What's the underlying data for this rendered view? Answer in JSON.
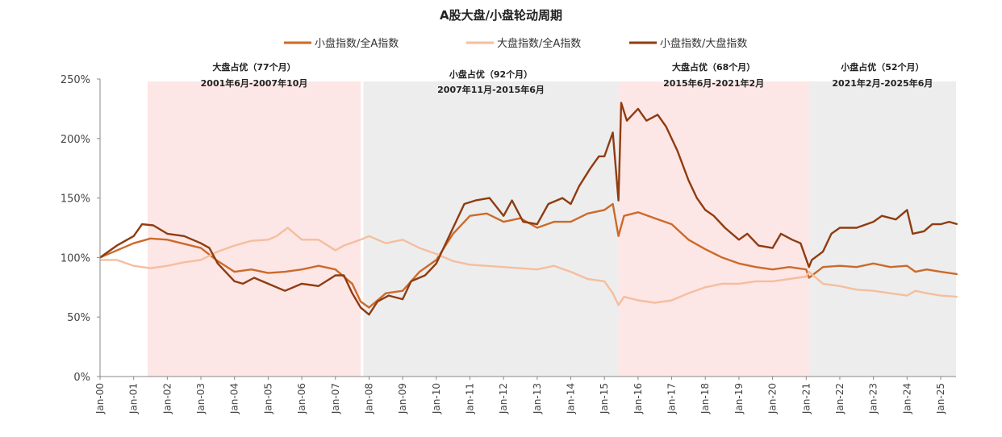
{
  "chart_data": {
    "type": "line",
    "title": "A股大盘/小盘轮动周期",
    "legend_position": "top",
    "grid": false,
    "ylim": [
      0,
      250
    ],
    "yticks": [
      "0%",
      "50%",
      "100%",
      "150%",
      "200%",
      "250%"
    ],
    "ytick_values": [
      0,
      50,
      100,
      150,
      200,
      250
    ],
    "xticks": [
      "Jan-00",
      "Jan-01",
      "Jan-02",
      "Jan-03",
      "Jan-04",
      "Jan-05",
      "Jan-06",
      "Jan-07",
      "Jan-08",
      "Jan-09",
      "Jan-10",
      "Jan-11",
      "Jan-12",
      "Jan-13",
      "Jan-14",
      "Jan-15",
      "Jan-16",
      "Jan-17",
      "Jan-18",
      "Jan-19",
      "Jan-20",
      "Jan-21",
      "Jan-22",
      "Jan-23",
      "Jan-24",
      "Jan-25"
    ],
    "xlim": [
      "2000-01",
      "2025-07"
    ],
    "regions": [
      {
        "start": "2001-06",
        "end": "2007-10",
        "label1": "大盘占优（77个月）",
        "label2": "2001年6月-2007年10月",
        "color": "#FDE6E6"
      },
      {
        "start": "2007-11",
        "end": "2015-06",
        "label1": "小盘占优（92个月）",
        "label2": "2007年11月-2015年6月",
        "color": "#EDEDED"
      },
      {
        "start": "2015-06",
        "end": "2021-02",
        "label1": "大盘占优（68个月）",
        "label2": "2015年6月-2021年2月",
        "color": "#FDE6E6"
      },
      {
        "start": "2021-02",
        "end": "2025-07",
        "label1": "小盘占优（52个月）",
        "label2": "2021年2月-2025年6月",
        "color": "#EDEDED"
      }
    ],
    "series": [
      {
        "name": "小盘指数/全A指数",
        "color": "#CC6A2A",
        "points": [
          [
            "2000-01",
            100
          ],
          [
            "2001-01",
            112
          ],
          [
            "2001-07",
            116
          ],
          [
            "2002-01",
            115
          ],
          [
            "2003-01",
            108
          ],
          [
            "2003-07",
            97
          ],
          [
            "2004-01",
            88
          ],
          [
            "2004-07",
            90
          ],
          [
            "2005-01",
            87
          ],
          [
            "2005-07",
            88
          ],
          [
            "2006-01",
            90
          ],
          [
            "2006-07",
            93
          ],
          [
            "2007-01",
            90
          ],
          [
            "2007-07",
            78
          ],
          [
            "2007-10",
            63
          ],
          [
            "2008-01",
            58
          ],
          [
            "2008-07",
            70
          ],
          [
            "2009-01",
            72
          ],
          [
            "2009-07",
            88
          ],
          [
            "2010-01",
            98
          ],
          [
            "2010-07",
            120
          ],
          [
            "2011-01",
            135
          ],
          [
            "2011-07",
            137
          ],
          [
            "2012-01",
            130
          ],
          [
            "2012-07",
            133
          ],
          [
            "2013-01",
            125
          ],
          [
            "2013-07",
            130
          ],
          [
            "2014-01",
            130
          ],
          [
            "2014-07",
            137
          ],
          [
            "2015-01",
            140
          ],
          [
            "2015-04",
            145
          ],
          [
            "2015-06",
            118
          ],
          [
            "2015-08",
            135
          ],
          [
            "2016-01",
            138
          ],
          [
            "2016-07",
            133
          ],
          [
            "2017-01",
            128
          ],
          [
            "2017-07",
            115
          ],
          [
            "2018-01",
            107
          ],
          [
            "2018-07",
            100
          ],
          [
            "2019-01",
            95
          ],
          [
            "2019-07",
            92
          ],
          [
            "2020-01",
            90
          ],
          [
            "2020-07",
            92
          ],
          [
            "2021-01",
            90
          ],
          [
            "2021-02",
            83
          ],
          [
            "2021-07",
            92
          ],
          [
            "2022-01",
            93
          ],
          [
            "2022-07",
            92
          ],
          [
            "2023-01",
            95
          ],
          [
            "2023-07",
            92
          ],
          [
            "2024-01",
            93
          ],
          [
            "2024-04",
            88
          ],
          [
            "2024-08",
            90
          ],
          [
            "2025-01",
            88
          ],
          [
            "2025-07",
            86
          ]
        ]
      },
      {
        "name": "大盘指数/全A指数",
        "color": "#F5BE9E",
        "points": [
          [
            "2000-01",
            98
          ],
          [
            "2000-07",
            98
          ],
          [
            "2001-01",
            93
          ],
          [
            "2001-07",
            91
          ],
          [
            "2002-01",
            93
          ],
          [
            "2002-07",
            96
          ],
          [
            "2003-01",
            98
          ],
          [
            "2003-07",
            105
          ],
          [
            "2004-01",
            110
          ],
          [
            "2004-07",
            114
          ],
          [
            "2005-01",
            115
          ],
          [
            "2005-04",
            118
          ],
          [
            "2005-08",
            125
          ],
          [
            "2006-01",
            115
          ],
          [
            "2006-07",
            115
          ],
          [
            "2007-01",
            106
          ],
          [
            "2007-04",
            110
          ],
          [
            "2007-10",
            115
          ],
          [
            "2008-01",
            118
          ],
          [
            "2008-07",
            112
          ],
          [
            "2009-01",
            115
          ],
          [
            "2009-07",
            108
          ],
          [
            "2010-01",
            103
          ],
          [
            "2010-07",
            97
          ],
          [
            "2011-01",
            94
          ],
          [
            "2012-01",
            92
          ],
          [
            "2013-01",
            90
          ],
          [
            "2013-07",
            93
          ],
          [
            "2014-01",
            88
          ],
          [
            "2014-07",
            82
          ],
          [
            "2015-01",
            80
          ],
          [
            "2015-04",
            70
          ],
          [
            "2015-06",
            60
          ],
          [
            "2015-08",
            67
          ],
          [
            "2016-01",
            64
          ],
          [
            "2016-07",
            62
          ],
          [
            "2017-01",
            64
          ],
          [
            "2017-07",
            70
          ],
          [
            "2018-01",
            75
          ],
          [
            "2018-07",
            78
          ],
          [
            "2019-01",
            78
          ],
          [
            "2019-07",
            80
          ],
          [
            "2020-01",
            80
          ],
          [
            "2020-07",
            82
          ],
          [
            "2021-01",
            84
          ],
          [
            "2021-02",
            88
          ],
          [
            "2021-07",
            78
          ],
          [
            "2022-01",
            76
          ],
          [
            "2022-07",
            73
          ],
          [
            "2023-01",
            72
          ],
          [
            "2023-07",
            70
          ],
          [
            "2024-01",
            68
          ],
          [
            "2024-04",
            72
          ],
          [
            "2024-08",
            70
          ],
          [
            "2025-01",
            68
          ],
          [
            "2025-07",
            67
          ]
        ]
      },
      {
        "name": "小盘指数/大盘指数",
        "color": "#8E3C10",
        "points": [
          [
            "2000-01",
            100
          ],
          [
            "2000-07",
            110
          ],
          [
            "2001-01",
            118
          ],
          [
            "2001-04",
            128
          ],
          [
            "2001-08",
            127
          ],
          [
            "2002-01",
            120
          ],
          [
            "2002-07",
            118
          ],
          [
            "2003-01",
            112
          ],
          [
            "2003-04",
            108
          ],
          [
            "2003-07",
            95
          ],
          [
            "2004-01",
            80
          ],
          [
            "2004-04",
            78
          ],
          [
            "2004-08",
            83
          ],
          [
            "2005-01",
            78
          ],
          [
            "2005-07",
            72
          ],
          [
            "2006-01",
            78
          ],
          [
            "2006-07",
            76
          ],
          [
            "2007-01",
            85
          ],
          [
            "2007-04",
            85
          ],
          [
            "2007-07",
            70
          ],
          [
            "2007-10",
            58
          ],
          [
            "2008-01",
            52
          ],
          [
            "2008-04",
            63
          ],
          [
            "2008-08",
            68
          ],
          [
            "2009-01",
            65
          ],
          [
            "2009-04",
            80
          ],
          [
            "2009-09",
            85
          ],
          [
            "2010-01",
            95
          ],
          [
            "2010-04",
            110
          ],
          [
            "2010-08",
            130
          ],
          [
            "2010-11",
            145
          ],
          [
            "2011-03",
            148
          ],
          [
            "2011-08",
            150
          ],
          [
            "2012-01",
            135
          ],
          [
            "2012-04",
            148
          ],
          [
            "2012-08",
            130
          ],
          [
            "2013-01",
            128
          ],
          [
            "2013-05",
            145
          ],
          [
            "2013-10",
            150
          ],
          [
            "2014-01",
            145
          ],
          [
            "2014-04",
            160
          ],
          [
            "2014-08",
            175
          ],
          [
            "2014-11",
            185
          ],
          [
            "2015-01",
            185
          ],
          [
            "2015-04",
            205
          ],
          [
            "2015-06",
            148
          ],
          [
            "2015-07",
            230
          ],
          [
            "2015-09",
            215
          ],
          [
            "2016-01",
            225
          ],
          [
            "2016-04",
            215
          ],
          [
            "2016-08",
            220
          ],
          [
            "2016-11",
            210
          ],
          [
            "2017-03",
            190
          ],
          [
            "2017-07",
            165
          ],
          [
            "2017-10",
            150
          ],
          [
            "2018-01",
            140
          ],
          [
            "2018-04",
            135
          ],
          [
            "2018-08",
            125
          ],
          [
            "2019-01",
            115
          ],
          [
            "2019-04",
            120
          ],
          [
            "2019-08",
            110
          ],
          [
            "2020-01",
            108
          ],
          [
            "2020-04",
            120
          ],
          [
            "2020-08",
            115
          ],
          [
            "2020-11",
            112
          ],
          [
            "2021-02",
            92
          ],
          [
            "2021-03",
            98
          ],
          [
            "2021-07",
            105
          ],
          [
            "2021-10",
            120
          ],
          [
            "2022-01",
            125
          ],
          [
            "2022-07",
            125
          ],
          [
            "2023-01",
            130
          ],
          [
            "2023-04",
            135
          ],
          [
            "2023-09",
            132
          ],
          [
            "2024-01",
            140
          ],
          [
            "2024-03",
            120
          ],
          [
            "2024-07",
            122
          ],
          [
            "2024-10",
            128
          ],
          [
            "2025-01",
            128
          ],
          [
            "2025-04",
            130
          ],
          [
            "2025-07",
            128
          ]
        ]
      }
    ]
  }
}
